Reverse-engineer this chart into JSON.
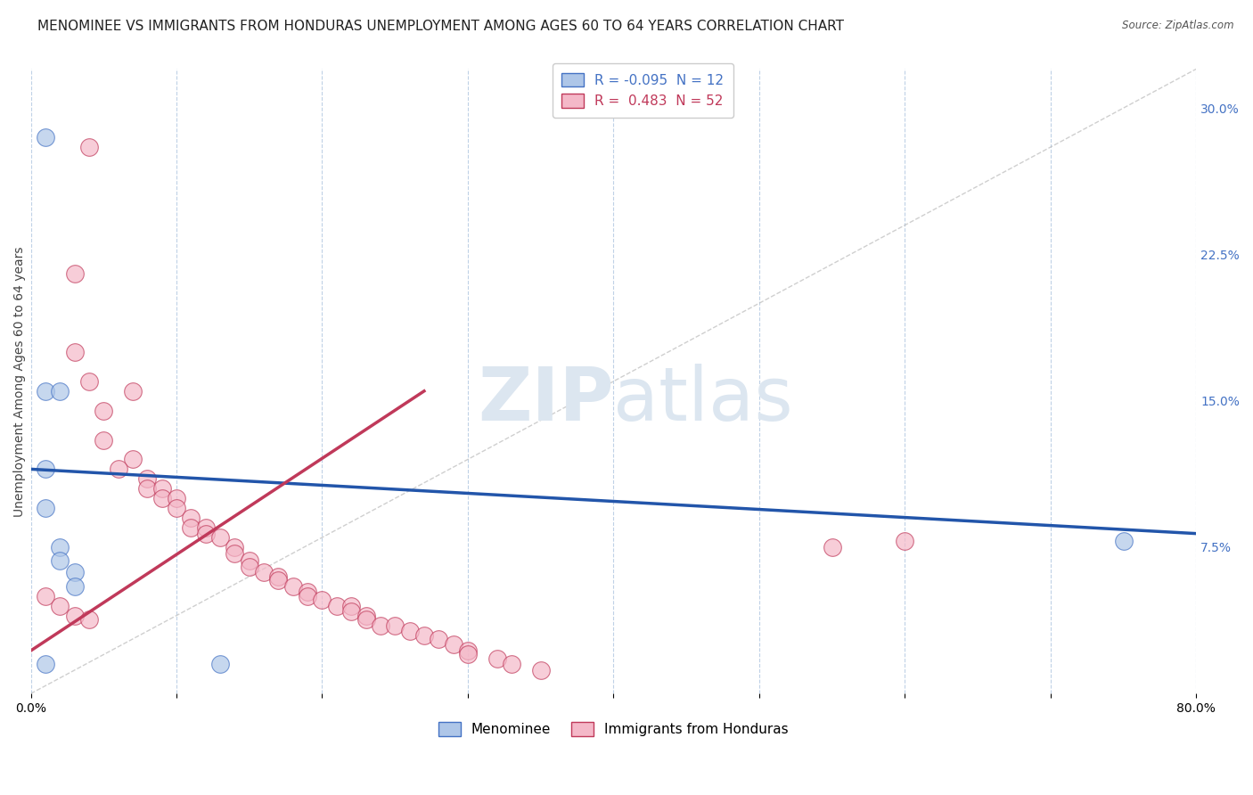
{
  "title": "MENOMINEE VS IMMIGRANTS FROM HONDURAS UNEMPLOYMENT AMONG AGES 60 TO 64 YEARS CORRELATION CHART",
  "source": "Source: ZipAtlas.com",
  "ylabel": "Unemployment Among Ages 60 to 64 years",
  "xlim": [
    0.0,
    0.8
  ],
  "ylim": [
    0.0,
    0.32
  ],
  "xticks": [
    0.0,
    0.1,
    0.2,
    0.3,
    0.4,
    0.5,
    0.6,
    0.7,
    0.8
  ],
  "yticks_right": [
    0.075,
    0.15,
    0.225,
    0.3
  ],
  "ytick_labels_right": [
    "7.5%",
    "15.0%",
    "22.5%",
    "30.0%"
  ],
  "menominee_scatter": [
    [
      0.01,
      0.285
    ],
    [
      0.01,
      0.155
    ],
    [
      0.02,
      0.155
    ],
    [
      0.01,
      0.115
    ],
    [
      0.01,
      0.095
    ],
    [
      0.02,
      0.075
    ],
    [
      0.02,
      0.068
    ],
    [
      0.03,
      0.062
    ],
    [
      0.03,
      0.055
    ],
    [
      0.75,
      0.078
    ],
    [
      0.01,
      0.015
    ],
    [
      0.13,
      0.015
    ]
  ],
  "honduras_scatter": [
    [
      0.04,
      0.28
    ],
    [
      0.03,
      0.215
    ],
    [
      0.03,
      0.175
    ],
    [
      0.04,
      0.16
    ],
    [
      0.07,
      0.155
    ],
    [
      0.05,
      0.145
    ],
    [
      0.05,
      0.13
    ],
    [
      0.07,
      0.12
    ],
    [
      0.06,
      0.115
    ],
    [
      0.08,
      0.11
    ],
    [
      0.08,
      0.105
    ],
    [
      0.09,
      0.105
    ],
    [
      0.09,
      0.1
    ],
    [
      0.1,
      0.1
    ],
    [
      0.1,
      0.095
    ],
    [
      0.11,
      0.09
    ],
    [
      0.11,
      0.085
    ],
    [
      0.12,
      0.085
    ],
    [
      0.12,
      0.082
    ],
    [
      0.13,
      0.08
    ],
    [
      0.14,
      0.075
    ],
    [
      0.14,
      0.072
    ],
    [
      0.15,
      0.068
    ],
    [
      0.15,
      0.065
    ],
    [
      0.16,
      0.062
    ],
    [
      0.17,
      0.06
    ],
    [
      0.17,
      0.058
    ],
    [
      0.18,
      0.055
    ],
    [
      0.19,
      0.052
    ],
    [
      0.19,
      0.05
    ],
    [
      0.2,
      0.048
    ],
    [
      0.21,
      0.045
    ],
    [
      0.22,
      0.045
    ],
    [
      0.22,
      0.042
    ],
    [
      0.23,
      0.04
    ],
    [
      0.23,
      0.038
    ],
    [
      0.24,
      0.035
    ],
    [
      0.25,
      0.035
    ],
    [
      0.26,
      0.032
    ],
    [
      0.27,
      0.03
    ],
    [
      0.28,
      0.028
    ],
    [
      0.29,
      0.025
    ],
    [
      0.3,
      0.022
    ],
    [
      0.3,
      0.02
    ],
    [
      0.32,
      0.018
    ],
    [
      0.33,
      0.015
    ],
    [
      0.35,
      0.012
    ],
    [
      0.01,
      0.05
    ],
    [
      0.02,
      0.045
    ],
    [
      0.03,
      0.04
    ],
    [
      0.04,
      0.038
    ],
    [
      0.55,
      0.075
    ],
    [
      0.6,
      0.078
    ]
  ],
  "menominee_line": {
    "x": [
      0.0,
      0.8
    ],
    "y": [
      0.115,
      0.082
    ]
  },
  "honduras_line": {
    "x": [
      0.0,
      0.27
    ],
    "y": [
      0.022,
      0.155
    ]
  },
  "dot_line": {
    "x": [
      0.0,
      0.8
    ],
    "y": [
      0.0,
      0.32
    ]
  },
  "scatter_size": 200,
  "menominee_color": "#aec6e8",
  "menominee_edge": "#4472c4",
  "honduras_color": "#f4b8c8",
  "honduras_edge": "#c0395a",
  "line_color_menominee": "#2255aa",
  "line_color_honduras": "#c0395a",
  "background_color": "#ffffff",
  "grid_color": "#b8cce4",
  "title_fontsize": 11,
  "axis_label_fontsize": 10,
  "tick_fontsize": 10,
  "watermark_color": "#dce6f0",
  "watermark_fontsize": 60
}
